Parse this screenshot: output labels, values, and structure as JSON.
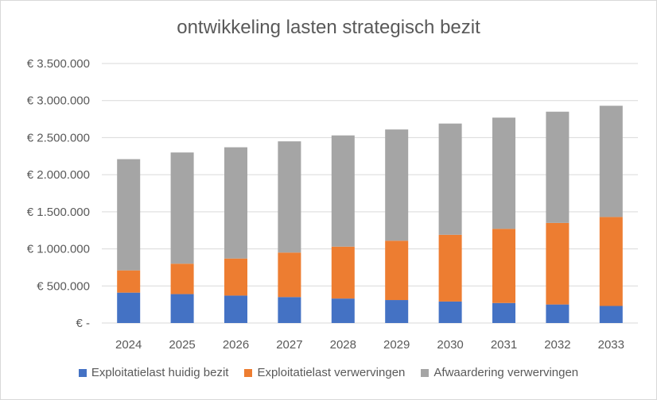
{
  "chart_data": {
    "type": "bar",
    "stacked": true,
    "title": "ontwikkeling lasten strategisch bezit",
    "xlabel": "",
    "ylabel": "",
    "ylim": [
      0,
      3500000
    ],
    "y_ticks": [
      0,
      500000,
      1000000,
      1500000,
      2000000,
      2500000,
      3000000,
      3500000
    ],
    "y_tick_labels": [
      "€ -",
      "€ 500.000",
      "€ 1.000.000",
      "€ 1.500.000",
      "€ 2.000.000",
      "€ 2.500.000",
      "€ 3.000.000",
      "€ 3.500.000"
    ],
    "grid": true,
    "legend_position": "bottom",
    "categories": [
      "2024",
      "2025",
      "2026",
      "2027",
      "2028",
      "2029",
      "2030",
      "2031",
      "2032",
      "2033"
    ],
    "series": [
      {
        "name": "Exploitatielast huidig bezit",
        "color": "#4472c4",
        "values": [
          410000,
          390000,
          370000,
          350000,
          330000,
          310000,
          290000,
          270000,
          250000,
          230000
        ]
      },
      {
        "name": "Exploitatielast verwervingen",
        "color": "#ed7d31",
        "values": [
          300000,
          410000,
          500000,
          600000,
          700000,
          800000,
          900000,
          1000000,
          1100000,
          1200000
        ]
      },
      {
        "name": "Afwaardering verwervingen",
        "color": "#a5a5a5",
        "values": [
          1500000,
          1500000,
          1500000,
          1500000,
          1500000,
          1500000,
          1500000,
          1500000,
          1500000,
          1500000
        ]
      }
    ]
  }
}
